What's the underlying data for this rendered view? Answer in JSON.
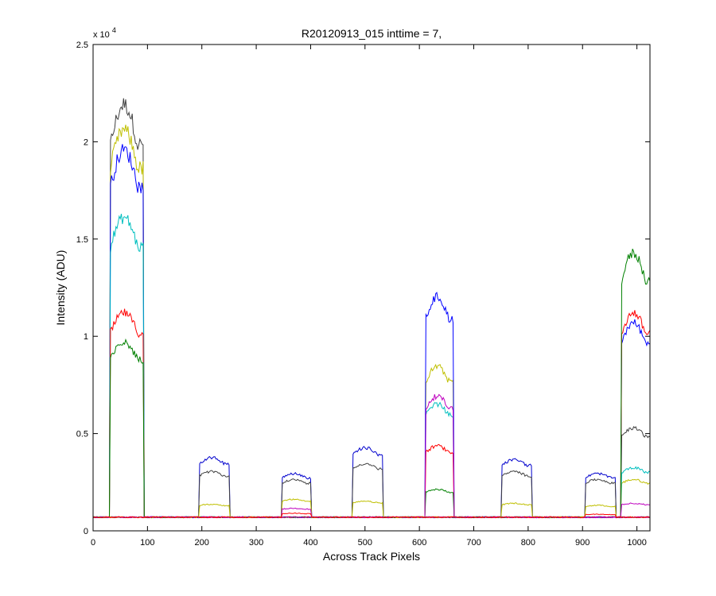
{
  "chart_data": {
    "type": "line",
    "title": "R20120913_015 inttime = 7,",
    "xlabel": "Across Track Pixels",
    "ylabel": "Intensity (ADU)",
    "xlim": [
      0,
      1024
    ],
    "ylim": [
      0,
      25000
    ],
    "x_ticks": [
      0,
      100,
      200,
      300,
      400,
      500,
      600,
      700,
      800,
      900,
      1000
    ],
    "y_ticks": [
      0,
      5000,
      10000,
      15000,
      20000,
      25000
    ],
    "y_tick_labels": [
      "0",
      "0.5",
      "1",
      "1.5",
      "2",
      "2.5"
    ],
    "y_exponent_label": "x 10",
    "y_exponent_power": "4",
    "grid": false,
    "legend": "none",
    "baseline": 700,
    "series": [
      {
        "color": "#404040",
        "illuminated_plateaus": [
          {
            "x_start": 32,
            "x_end": 92,
            "level": 21500
          },
          {
            "x_start": 972,
            "x_end": 1024,
            "level": 5200
          }
        ]
      },
      {
        "color": "#bfbf00",
        "illuminated_plateaus": [
          {
            "x_start": 32,
            "x_end": 92,
            "level": 20200
          },
          {
            "x_start": 612,
            "x_end": 662,
            "level": 8300
          },
          {
            "x_start": 972,
            "x_end": 1024,
            "level": 2600
          }
        ]
      },
      {
        "color": "#0000ff",
        "illuminated_plateaus": [
          {
            "x_start": 32,
            "x_end": 92,
            "level": 19200
          },
          {
            "x_start": 612,
            "x_end": 662,
            "level": 11800
          },
          {
            "x_start": 972,
            "x_end": 1024,
            "level": 10500
          }
        ]
      },
      {
        "color": "#00bfbf",
        "illuminated_plateaus": [
          {
            "x_start": 32,
            "x_end": 92,
            "level": 15800
          },
          {
            "x_start": 612,
            "x_end": 662,
            "level": 6400
          },
          {
            "x_start": 972,
            "x_end": 1024,
            "level": 3200
          }
        ]
      },
      {
        "color": "#ff0000",
        "illuminated_plateaus": [
          {
            "x_start": 32,
            "x_end": 92,
            "level": 11000
          },
          {
            "x_start": 612,
            "x_end": 662,
            "level": 4300
          },
          {
            "x_start": 972,
            "x_end": 1024,
            "level": 11000
          }
        ]
      },
      {
        "color": "#008000",
        "illuminated_plateaus": [
          {
            "x_start": 32,
            "x_end": 92,
            "level": 9500
          },
          {
            "x_start": 612,
            "x_end": 662,
            "level": 2100
          },
          {
            "x_start": 972,
            "x_end": 1024,
            "level": 14000
          }
        ]
      },
      {
        "color": "#bf00bf",
        "illuminated_plateaus": [
          {
            "x_start": 612,
            "x_end": 662,
            "level": 6800
          },
          {
            "x_start": 972,
            "x_end": 1024,
            "level": 1400
          }
        ]
      },
      {
        "color": "#0000cd",
        "illuminated_plateaus": [
          {
            "x_start": 195,
            "x_end": 250,
            "level": 3700
          },
          {
            "x_start": 348,
            "x_end": 400,
            "level": 2900
          },
          {
            "x_start": 478,
            "x_end": 532,
            "level": 4200
          },
          {
            "x_start": 752,
            "x_end": 806,
            "level": 3600
          },
          {
            "x_start": 905,
            "x_end": 960,
            "level": 2900
          }
        ]
      },
      {
        "color": "#404040",
        "illuminated_plateaus": [
          {
            "x_start": 195,
            "x_end": 250,
            "level": 3000
          },
          {
            "x_start": 348,
            "x_end": 400,
            "level": 2600
          },
          {
            "x_start": 478,
            "x_end": 532,
            "level": 3400
          },
          {
            "x_start": 752,
            "x_end": 806,
            "level": 3000
          },
          {
            "x_start": 905,
            "x_end": 960,
            "level": 2600
          }
        ]
      },
      {
        "color": "#bfbf00",
        "illuminated_plateaus": [
          {
            "x_start": 195,
            "x_end": 250,
            "level": 1350
          },
          {
            "x_start": 348,
            "x_end": 400,
            "level": 1600
          },
          {
            "x_start": 478,
            "x_end": 532,
            "level": 1500
          },
          {
            "x_start": 752,
            "x_end": 806,
            "level": 1400
          },
          {
            "x_start": 905,
            "x_end": 960,
            "level": 1300
          }
        ]
      },
      {
        "color": "#bf00bf",
        "illuminated_plateaus": [
          {
            "x_start": 348,
            "x_end": 400,
            "level": 1150
          }
        ]
      },
      {
        "color": "#ff0000",
        "illuminated_plateaus": [
          {
            "x_start": 348,
            "x_end": 400,
            "level": 900
          },
          {
            "x_start": 905,
            "x_end": 960,
            "level": 850
          }
        ]
      }
    ]
  }
}
